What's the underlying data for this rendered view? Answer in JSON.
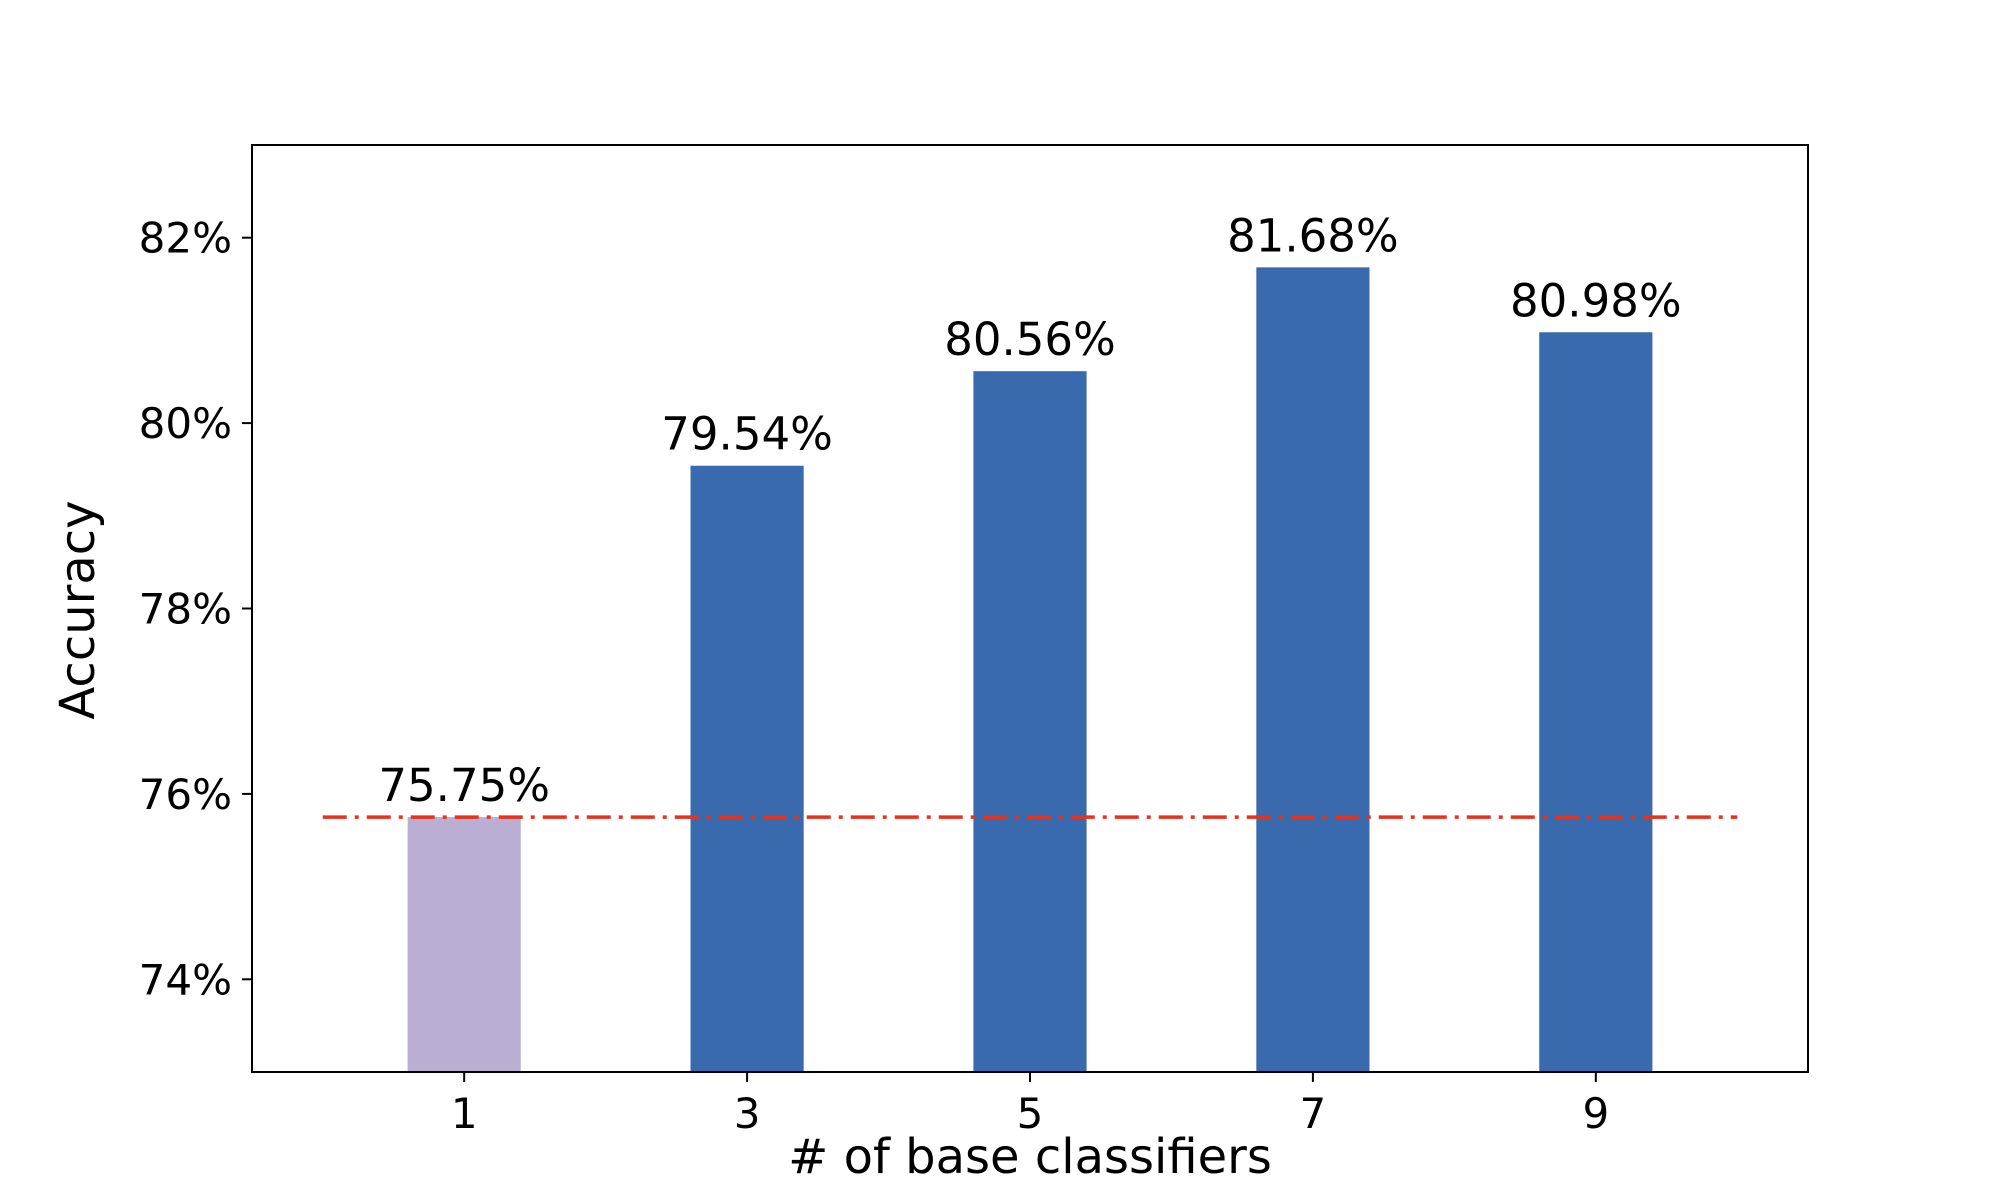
{
  "chart_data": {
    "type": "bar",
    "categories": [
      "1",
      "3",
      "5",
      "7",
      "9"
    ],
    "values": [
      75.75,
      79.54,
      80.56,
      81.68,
      80.98
    ],
    "data_labels": [
      "75.75%",
      "79.54%",
      "80.56%",
      "81.68%",
      "80.98%"
    ],
    "bar_colors": [
      "#bbaed3",
      "#386aad",
      "#386aad",
      "#386aad",
      "#386aad"
    ],
    "xlabel": "# of base classifiers",
    "ylabel": "Accuracy",
    "ylim": [
      73,
      83
    ],
    "yticks": [
      74,
      76,
      78,
      80,
      82
    ],
    "ytick_labels": [
      "74%",
      "76%",
      "78%",
      "80%",
      "82%"
    ],
    "reference_line": {
      "value": 75.75,
      "style": "dash-dot",
      "color": "#e8311a"
    },
    "grid": false,
    "legend": "none"
  }
}
